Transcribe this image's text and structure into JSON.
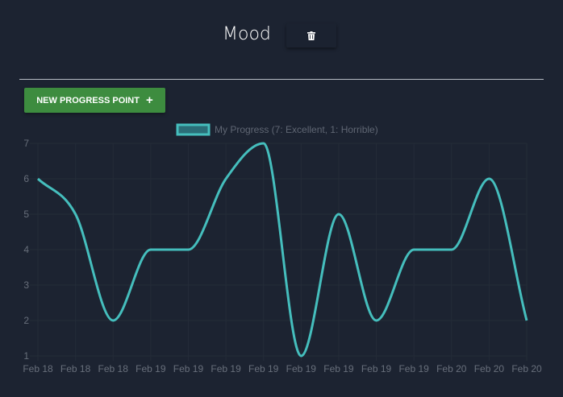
{
  "header": {
    "title": "Mood",
    "delete_icon": "trash-icon"
  },
  "toolbar": {
    "new_button_label": "NEW PROGRESS POINT",
    "new_button_icon": "plus-icon"
  },
  "colors": {
    "background": "#1c2331",
    "line": "#45bebd",
    "legend_fill": "#2b6e78",
    "button": "#3d8c3f",
    "grid": "#242c38",
    "tick": "#686f7b"
  },
  "chart_data": {
    "type": "line",
    "legend": "My Progress (7: Excellent, 1: Horrible)",
    "legend_position": "top-center",
    "grid": true,
    "ylim": [
      1,
      7
    ],
    "y_ticks": [
      "1",
      "2",
      "3",
      "4",
      "5",
      "6",
      "7"
    ],
    "categories": [
      "Feb 18",
      "Feb 18",
      "Feb 18",
      "Feb 19",
      "Feb 19",
      "Feb 19",
      "Feb 19",
      "Feb 19",
      "Feb 19",
      "Feb 19",
      "Feb 19",
      "Feb 20",
      "Feb 20",
      "Feb 20"
    ],
    "series": [
      {
        "name": "My Progress (7: Excellent, 1: Horrible)",
        "values": [
          6,
          5,
          2,
          4,
          4,
          6,
          7,
          1,
          5,
          2,
          4,
          4,
          6,
          2
        ]
      }
    ]
  }
}
